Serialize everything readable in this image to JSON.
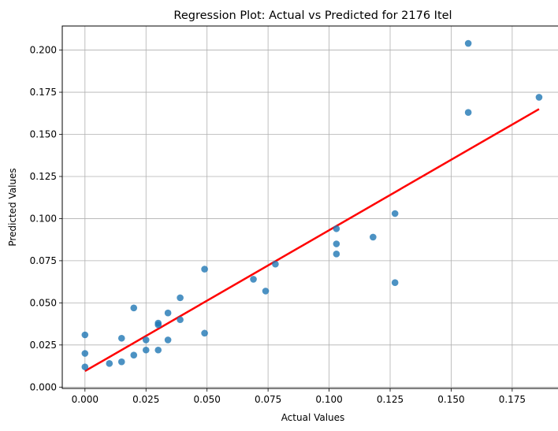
{
  "chart_data": {
    "type": "scatter",
    "title": "Regression Plot: Actual vs Predicted for 2176 Itel",
    "xlabel": "Actual Values",
    "ylabel": "Predicted Values",
    "xlim": [
      -0.0093,
      0.1957
    ],
    "ylim": [
      -0.0008,
      0.2143
    ],
    "xticks": [
      0.0,
      0.025,
      0.05,
      0.075,
      0.1,
      0.125,
      0.15,
      0.175
    ],
    "xtick_labels": [
      "0.000",
      "0.025",
      "0.050",
      "0.075",
      "0.100",
      "0.125",
      "0.150",
      "0.175"
    ],
    "yticks": [
      0.0,
      0.025,
      0.05,
      0.075,
      0.1,
      0.125,
      0.15,
      0.175,
      0.2
    ],
    "ytick_labels": [
      "0.000",
      "0.025",
      "0.050",
      "0.075",
      "0.100",
      "0.125",
      "0.150",
      "0.175",
      "0.200"
    ],
    "grid": true,
    "series": [
      {
        "type": "scatter",
        "color": "#1f77b4",
        "points": [
          [
            0.0,
            0.031
          ],
          [
            0.0,
            0.02
          ],
          [
            0.0,
            0.012
          ],
          [
            0.01,
            0.014
          ],
          [
            0.015,
            0.015
          ],
          [
            0.015,
            0.029
          ],
          [
            0.02,
            0.047
          ],
          [
            0.02,
            0.019
          ],
          [
            0.025,
            0.028
          ],
          [
            0.025,
            0.022
          ],
          [
            0.03,
            0.037
          ],
          [
            0.03,
            0.038
          ],
          [
            0.03,
            0.022
          ],
          [
            0.034,
            0.044
          ],
          [
            0.034,
            0.028
          ],
          [
            0.039,
            0.053
          ],
          [
            0.039,
            0.04
          ],
          [
            0.049,
            0.07
          ],
          [
            0.049,
            0.032
          ],
          [
            0.069,
            0.064
          ],
          [
            0.074,
            0.057
          ],
          [
            0.078,
            0.073
          ],
          [
            0.103,
            0.094
          ],
          [
            0.103,
            0.085
          ],
          [
            0.103,
            0.079
          ],
          [
            0.118,
            0.089
          ],
          [
            0.127,
            0.103
          ],
          [
            0.127,
            0.062
          ],
          [
            0.157,
            0.204
          ],
          [
            0.157,
            0.163
          ],
          [
            0.186,
            0.172
          ]
        ]
      },
      {
        "type": "line",
        "color": "#ff0000",
        "points": [
          [
            0.0,
            0.0095
          ],
          [
            0.186,
            0.165
          ]
        ]
      }
    ]
  }
}
